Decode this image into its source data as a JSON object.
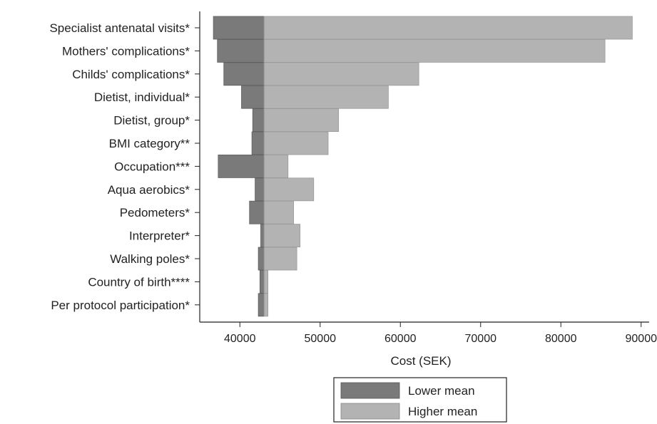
{
  "chart_data": {
    "type": "bar",
    "orientation": "horizontal",
    "subtype": "tornado",
    "title": "",
    "xlabel": "Cost (SEK)",
    "ylabel": "",
    "base_value": 43000,
    "xlim": [
      35000,
      91000
    ],
    "xticks": [
      40000,
      50000,
      60000,
      70000,
      80000,
      90000
    ],
    "grid": false,
    "legend_position": "bottom",
    "categories": [
      "Specialist antenatal visits*",
      "Mothers' complications*",
      "Childs' complications*",
      "Dietist, individual*",
      "Dietist, group*",
      "BMI category**",
      "Occupation***",
      "Aqua aerobics*",
      "Pedometers*",
      "Interpreter*",
      "Walking poles*",
      "Country of birth****",
      "Per protocol participation*"
    ],
    "series": [
      {
        "name": "Lower mean",
        "color": "#7a7a7a",
        "values": [
          36700,
          37200,
          38000,
          40200,
          41600,
          41500,
          37300,
          41900,
          41200,
          42600,
          42300,
          42500,
          42300
        ]
      },
      {
        "name": "Higher mean",
        "color": "#b3b3b3",
        "values": [
          88900,
          85500,
          62300,
          58500,
          52300,
          51000,
          46000,
          49200,
          46700,
          47500,
          47100,
          43500,
          43500
        ]
      }
    ]
  }
}
